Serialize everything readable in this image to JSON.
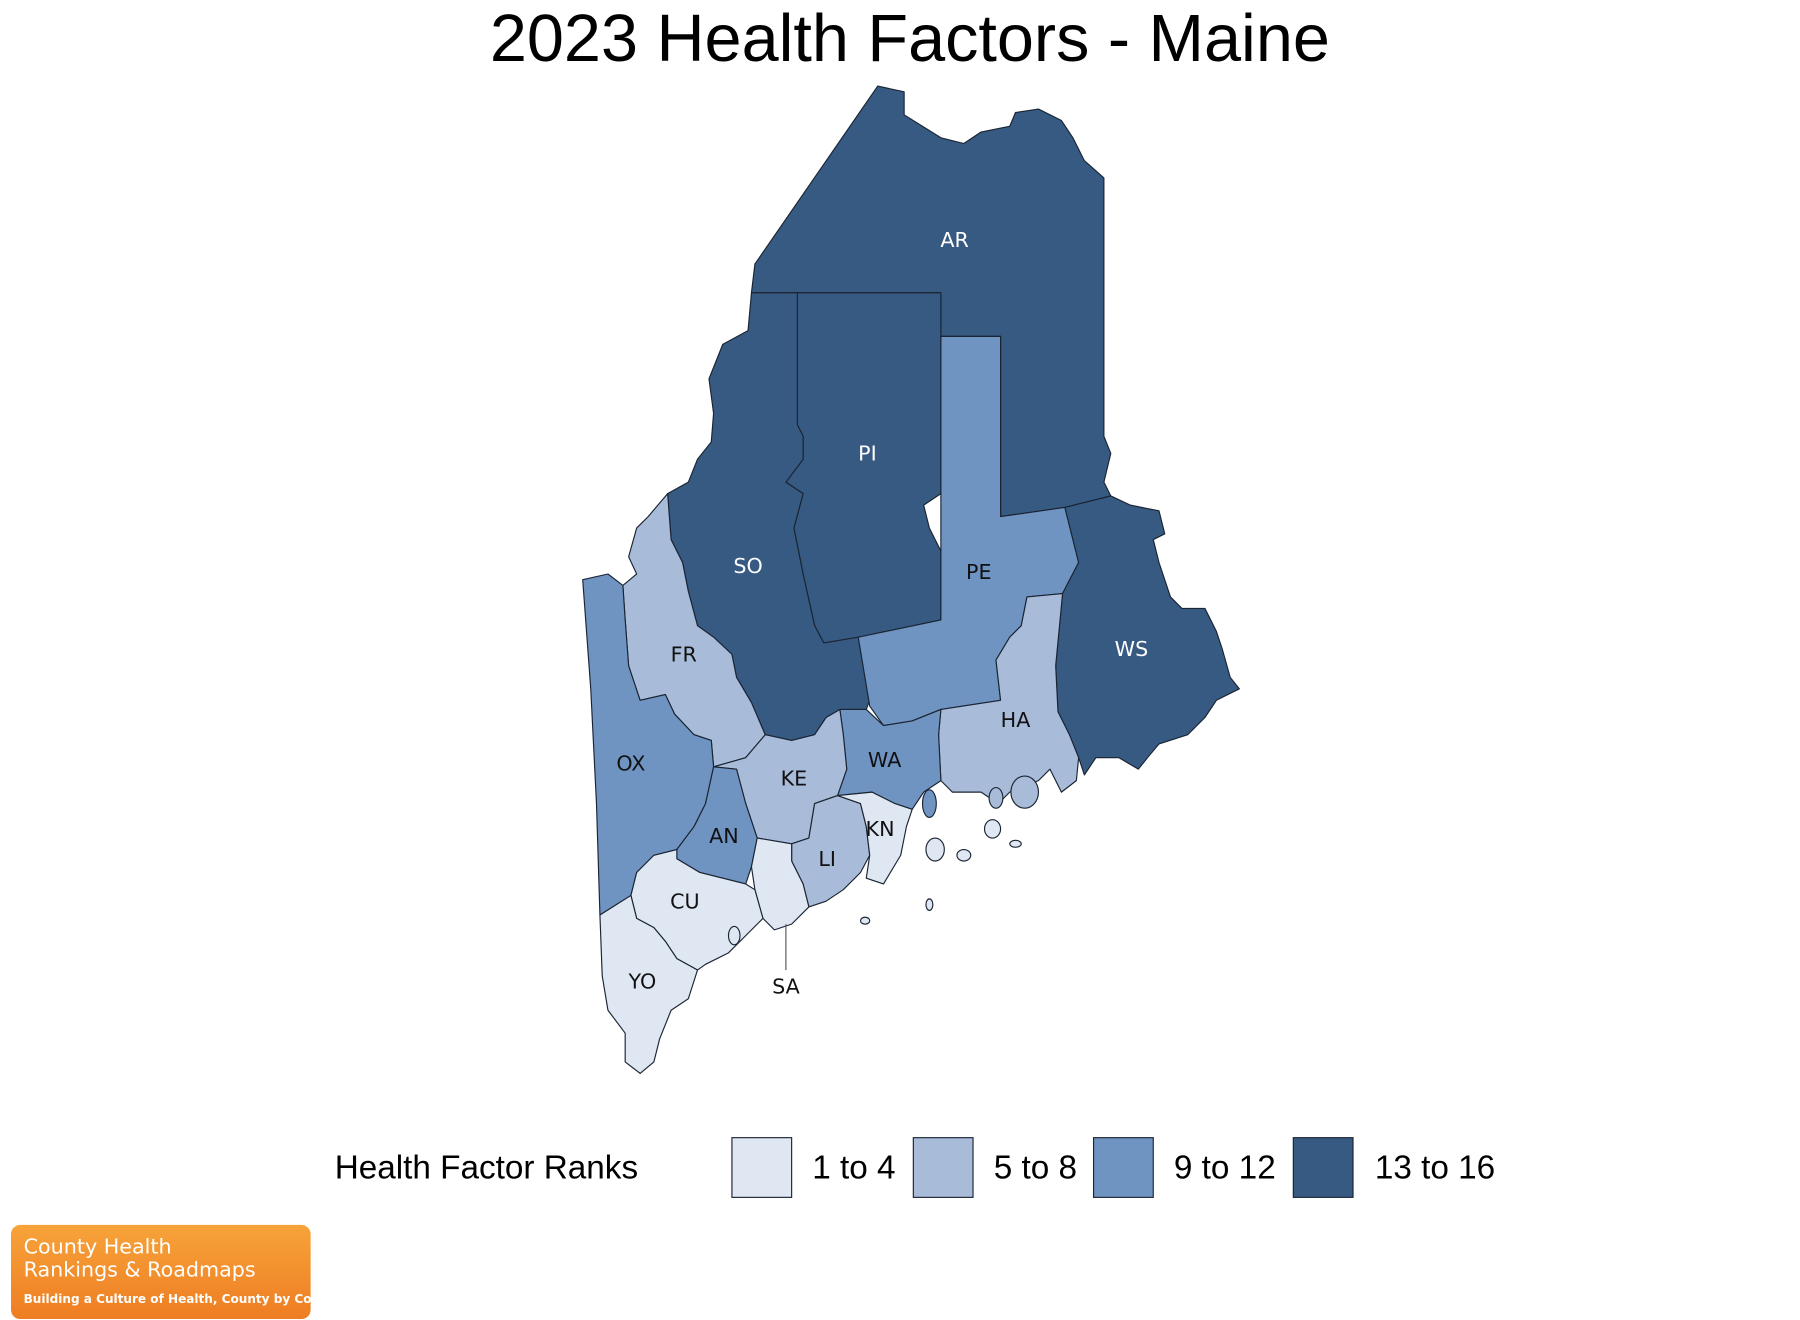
{
  "title": "2023 Health Factors - Maine",
  "regions": [
    {
      "label": "AR",
      "color": "#375a82"
    },
    {
      "label": "PI",
      "color": "#375a82"
    },
    {
      "label": "SO",
      "color": "#375a82"
    },
    {
      "label": "PE",
      "color": "#6f94c1"
    },
    {
      "label": "WS",
      "color": "#375a82"
    },
    {
      "label": "HA",
      "color": "#a8bcd9"
    },
    {
      "label": "WA",
      "color": "#6f94c1"
    },
    {
      "label": "FR",
      "color": "#a8bcd9"
    },
    {
      "label": "OX",
      "color": "#6f94c1"
    },
    {
      "label": "KE",
      "color": "#a8bcd9"
    },
    {
      "label": "AN",
      "color": "#6f94c1"
    },
    {
      "label": "LI",
      "color": "#a8bcd9"
    },
    {
      "label": "KN",
      "color": "#dfe7f2"
    },
    {
      "label": "SA",
      "color": "#dfe7f2"
    },
    {
      "label": "CU",
      "color": "#dfe7f2"
    },
    {
      "label": "YO",
      "color": "#dfe7f2"
    }
  ],
  "legend": {
    "title": "Health Factor Ranks",
    "items": [
      {
        "label": "1 to 4",
        "color": "#dfe7f2"
      },
      {
        "label": "5 to 8",
        "color": "#a8bcd9"
      },
      {
        "label": "9 to 12",
        "color": "#6f94c1"
      },
      {
        "label": "13 to 16",
        "color": "#375a82"
      }
    ]
  },
  "logo": {
    "line1": "County Health",
    "line2": "Rankings & Roadmaps",
    "tagline": "Building a Culture of Health, County by County"
  }
}
